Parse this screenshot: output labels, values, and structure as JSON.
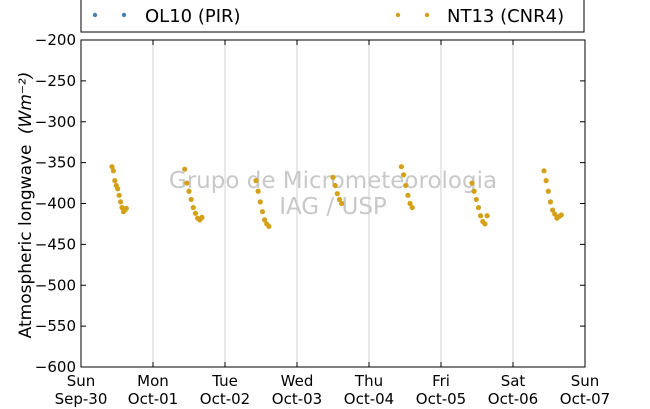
{
  "chart_data": {
    "type": "scatter",
    "title": "",
    "xlabel": "",
    "ylabel": "Atmospheric longwave",
    "ylabel_units": "(Wm⁻²)",
    "ylim": [
      -600,
      -200
    ],
    "xlim": [
      0,
      7
    ],
    "grid": "vertical",
    "legend_position": "top",
    "yticks": [
      -200,
      -250,
      -300,
      -350,
      -400,
      -450,
      -500,
      -550,
      -600
    ],
    "xticks": [
      {
        "x": 0,
        "day": "Sun",
        "date": "Sep-30"
      },
      {
        "x": 1,
        "day": "Mon",
        "date": "Oct-01"
      },
      {
        "x": 2,
        "day": "Tue",
        "date": "Oct-02"
      },
      {
        "x": 3,
        "day": "Wed",
        "date": "Oct-03"
      },
      {
        "x": 4,
        "day": "Thu",
        "date": "Oct-04"
      },
      {
        "x": 5,
        "day": "Fri",
        "date": "Oct-05"
      },
      {
        "x": 6,
        "day": "Sat",
        "date": "Oct-06"
      },
      {
        "x": 7,
        "day": "Sun",
        "date": "Oct-07"
      }
    ],
    "series": [
      {
        "name": "OL10 (PIR)",
        "color": "#4682b4",
        "points": []
      },
      {
        "name": "NT13 (CNR4)",
        "color": "#d4a017",
        "points": [
          [
            0.43,
            -355
          ],
          [
            0.45,
            -360
          ],
          [
            0.47,
            -372
          ],
          [
            0.49,
            -378
          ],
          [
            0.51,
            -382
          ],
          [
            0.53,
            -390
          ],
          [
            0.55,
            -398
          ],
          [
            0.57,
            -405
          ],
          [
            0.59,
            -410
          ],
          [
            0.61,
            -408
          ],
          [
            0.63,
            -406
          ],
          [
            1.44,
            -358
          ],
          [
            1.47,
            -375
          ],
          [
            1.5,
            -385
          ],
          [
            1.53,
            -395
          ],
          [
            1.56,
            -405
          ],
          [
            1.59,
            -412
          ],
          [
            1.62,
            -418
          ],
          [
            1.65,
            -420
          ],
          [
            1.68,
            -417
          ],
          [
            2.43,
            -372
          ],
          [
            2.46,
            -385
          ],
          [
            2.49,
            -398
          ],
          [
            2.52,
            -410
          ],
          [
            2.55,
            -420
          ],
          [
            2.58,
            -425
          ],
          [
            2.61,
            -428
          ],
          [
            3.5,
            -368
          ],
          [
            3.53,
            -378
          ],
          [
            3.56,
            -388
          ],
          [
            3.59,
            -395
          ],
          [
            3.62,
            -400
          ],
          [
            4.45,
            -355
          ],
          [
            4.48,
            -365
          ],
          [
            4.51,
            -378
          ],
          [
            4.54,
            -390
          ],
          [
            4.57,
            -400
          ],
          [
            4.6,
            -405
          ],
          [
            5.43,
            -375
          ],
          [
            5.46,
            -385
          ],
          [
            5.49,
            -395
          ],
          [
            5.52,
            -405
          ],
          [
            5.55,
            -415
          ],
          [
            5.58,
            -422
          ],
          [
            5.61,
            -425
          ],
          [
            5.64,
            -415
          ],
          [
            6.43,
            -360
          ],
          [
            6.46,
            -372
          ],
          [
            6.49,
            -385
          ],
          [
            6.52,
            -398
          ],
          [
            6.55,
            -408
          ],
          [
            6.58,
            -413
          ],
          [
            6.61,
            -418
          ],
          [
            6.64,
            -416
          ],
          [
            6.67,
            -414
          ]
        ]
      }
    ]
  },
  "watermark": {
    "line1": "Grupo de Micrometeorologia",
    "line2": "IAG / USP"
  }
}
